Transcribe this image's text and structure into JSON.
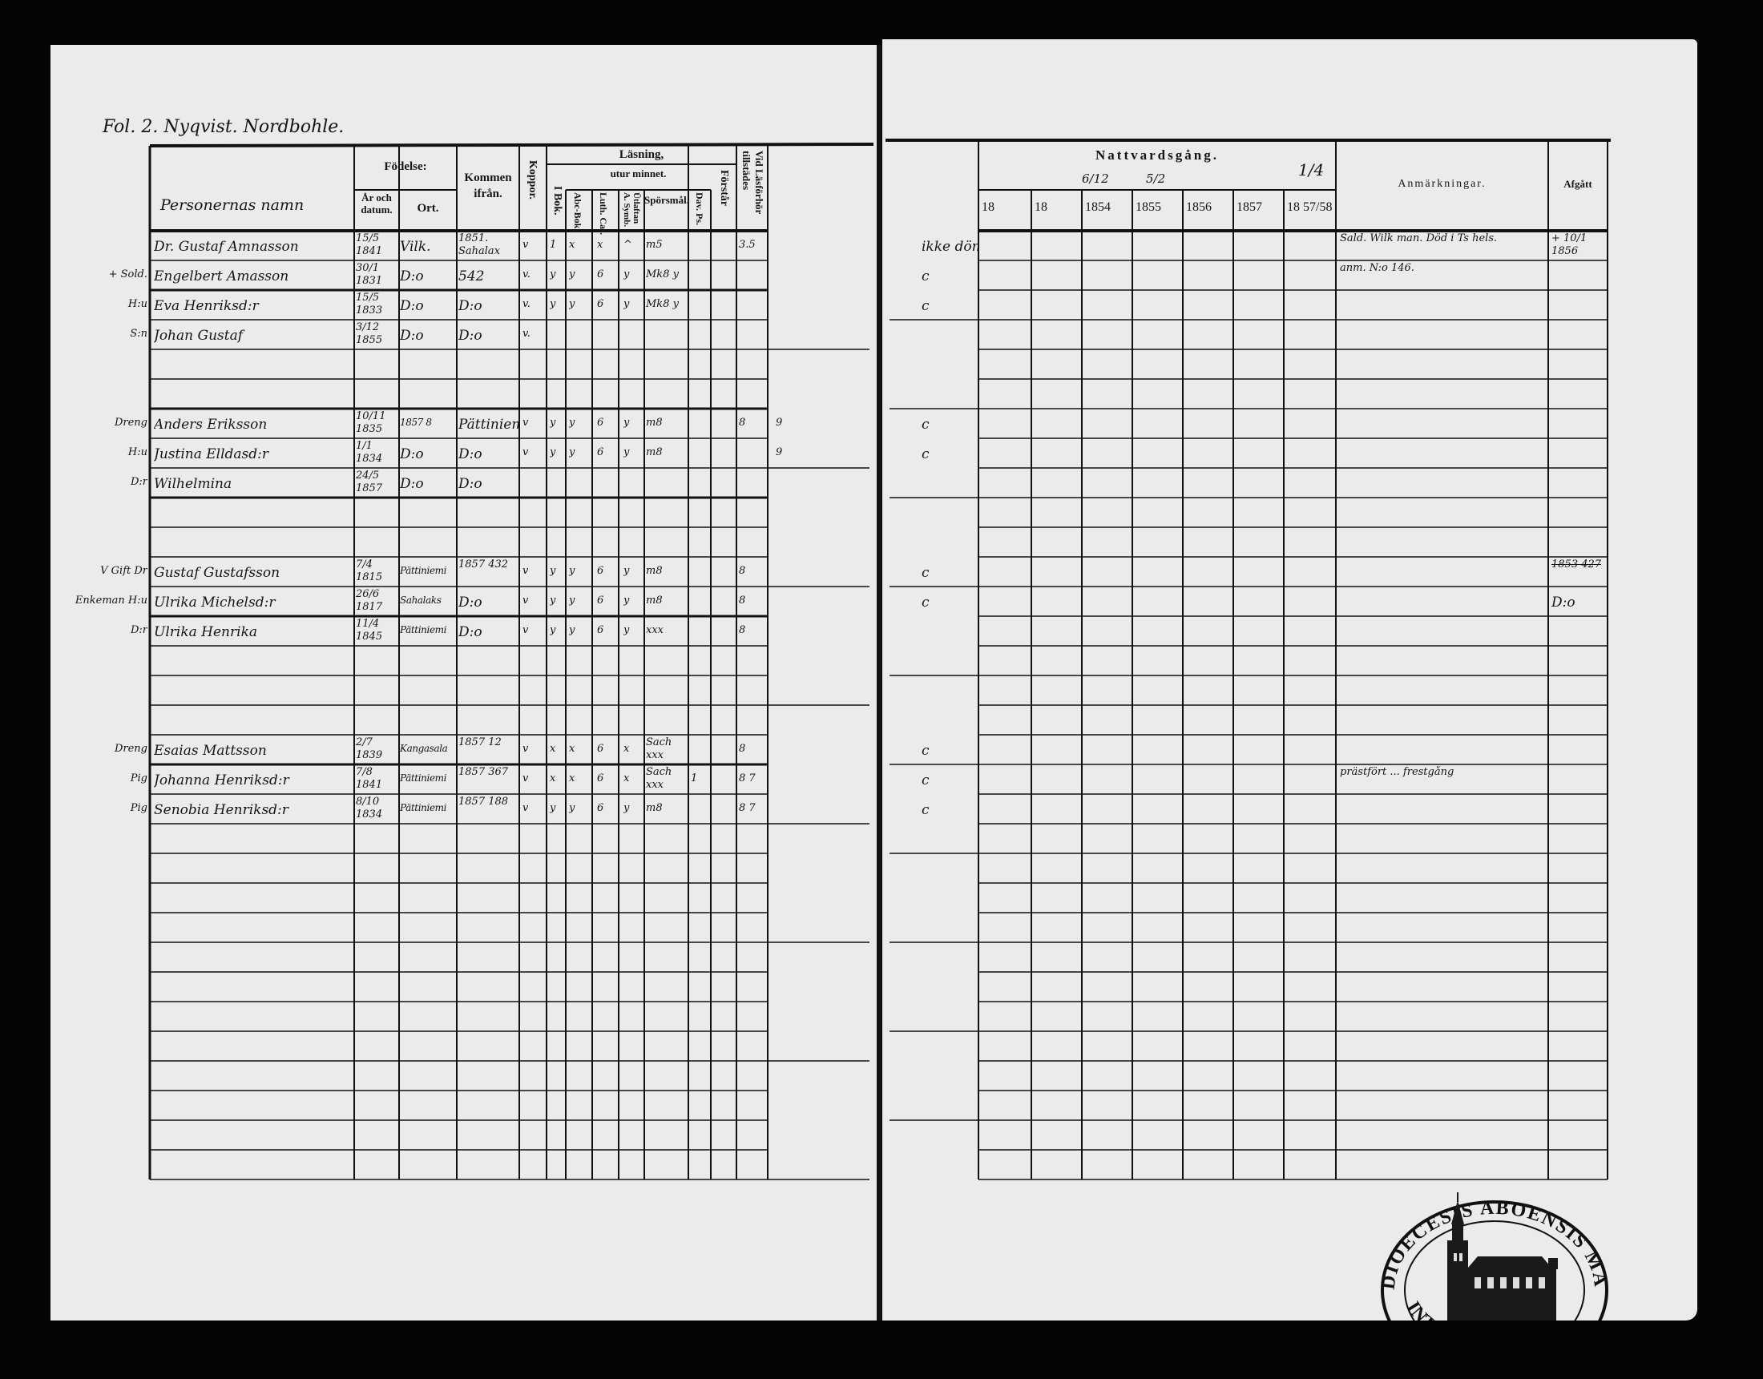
{
  "folio_title": "Fol. 2. Nyqvist. Nordbohle.",
  "left_header": {
    "name_col": "Personernas namn",
    "fodelse": "Födelse:",
    "ar_datum": "År och datum.",
    "ort": "Ort.",
    "kommen": "Kommen ifrån.",
    "koppor": "Koppor.",
    "lasning": "Läsning,",
    "i_bok": "I Bok.",
    "utur_minnet": "utur minnet.",
    "abc_bok": "Abc-Bok.",
    "luth_cat": "Luth. Cat.",
    "symb": "Ütlaftan A. Symb.",
    "sporsmal": "Spörsmål.",
    "dav_ps": "Dav. Ps.",
    "forstar": "Förstår",
    "vid_lasforhor": "Vid Läsförhör tillstädes"
  },
  "right_header": {
    "nattvardsgang": "Nattvardsgång.",
    "date_marks": [
      "6/12",
      "5/2",
      "1/4"
    ],
    "years": [
      "18",
      "18",
      "1854",
      "1855",
      "1856",
      "1857",
      "18 57/58"
    ],
    "anmarkningar": "Anmärkningar.",
    "afgatt": "Afgått"
  },
  "rows": [
    {
      "margin": "",
      "name": "Dr. Gustaf Amnasson",
      "date": "15/5 1841",
      "ort": "Vilk.",
      "kommen": "1851. Sahalax",
      "koppor": "v",
      "ibok": "1",
      "abc": "x",
      "luth": "x",
      "symb": "^",
      "spors": "m5",
      "dav": "",
      "forstar": "",
      "vid": "3.5",
      "extra": "",
      "r_margin": "ikke döm",
      "remark": "Sald. Wilk man. Död i Ts hels.",
      "afgatt": "+ 10/1 1856"
    },
    {
      "margin": "+ Sold.",
      "name": "Engelbert Amasson",
      "date": "30/1 1831",
      "ort": "D:o",
      "kommen": "542",
      "koppor": "v.",
      "ibok": "y",
      "abc": "y",
      "luth": "6",
      "symb": "y",
      "spors": "Mk8 y",
      "dav": "",
      "forstar": "",
      "vid": "",
      "extra": "",
      "r_margin": "c",
      "remark": "anm. N:o 146.",
      "afgatt": ""
    },
    {
      "margin": "H:u",
      "name": "Eva Henriksd:r",
      "date": "15/5 1833",
      "ort": "D:o",
      "kommen": "D:o",
      "koppor": "v.",
      "ibok": "y",
      "abc": "y",
      "luth": "6",
      "symb": "y",
      "spors": "Mk8 y",
      "dav": "",
      "forstar": "",
      "vid": "",
      "extra": "",
      "r_margin": "c",
      "remark": "",
      "afgatt": ""
    },
    {
      "margin": "S:n",
      "name": "Johan Gustaf",
      "date": "3/12 1855",
      "ort": "D:o",
      "kommen": "D:o",
      "koppor": "v.",
      "ibok": "",
      "abc": "",
      "luth": "",
      "symb": "",
      "spors": "",
      "dav": "",
      "forstar": "",
      "vid": "",
      "extra": "",
      "r_margin": "",
      "remark": "",
      "afgatt": ""
    },
    {},
    {},
    {
      "margin": "Dreng",
      "name": "Anders Eriksson",
      "date": "10/11 1835",
      "ort": "1857 8",
      "kommen": "Pättiniemi",
      "koppor": "v",
      "ibok": "y",
      "abc": "y",
      "luth": "6",
      "symb": "y",
      "spors": "m8",
      "dav": "",
      "forstar": "",
      "vid": "8",
      "extra": "9",
      "r_margin": "c",
      "remark": "",
      "afgatt": ""
    },
    {
      "margin": "H:u",
      "name": "Justina Elldasd:r",
      "date": "1/1 1834",
      "ort": "D:o",
      "kommen": "D:o",
      "koppor": "v",
      "ibok": "y",
      "abc": "y",
      "luth": "6",
      "symb": "y",
      "spors": "m8",
      "dav": "",
      "forstar": "",
      "vid": "",
      "extra": "9",
      "r_margin": "c",
      "remark": "",
      "afgatt": ""
    },
    {
      "margin": "D:r",
      "name": "Wilhelmina",
      "date": "24/5 1857",
      "ort": "D:o",
      "kommen": "D:o",
      "koppor": "",
      "ibok": "",
      "abc": "",
      "luth": "",
      "symb": "",
      "spors": "",
      "dav": "",
      "forstar": "",
      "vid": "",
      "extra": "",
      "r_margin": "",
      "remark": "",
      "afgatt": ""
    },
    {},
    {},
    {
      "margin": "V Gift Dr",
      "name": "Gustaf Gustafsson",
      "date": "7/4 1815",
      "ort": "Pättiniemi",
      "kommen": "1857 432",
      "koppor": "v",
      "ibok": "y",
      "abc": "y",
      "luth": "6",
      "symb": "y",
      "spors": "m8",
      "dav": "",
      "forstar": "",
      "vid": "8",
      "extra": "",
      "r_margin": "c",
      "remark": "",
      "afgatt": "1853 427"
    },
    {
      "margin": "Enkeman H:u",
      "name": "Ulrika Michelsd:r",
      "date": "26/6 1817",
      "ort": "Sahalaks",
      "kommen": "D:o",
      "koppor": "v",
      "ibok": "y",
      "abc": "y",
      "luth": "6",
      "symb": "y",
      "spors": "m8",
      "dav": "",
      "forstar": "",
      "vid": "8",
      "extra": "",
      "r_margin": "c",
      "remark": "",
      "afgatt": "D:o"
    },
    {
      "margin": "D:r",
      "name": "Ulrika Henrika",
      "date": "11/4 1845",
      "ort": "Pättiniemi",
      "kommen": "D:o",
      "koppor": "v",
      "ibok": "y",
      "abc": "y",
      "luth": "6",
      "symb": "y",
      "spors": "xxx",
      "dav": "",
      "forstar": "",
      "vid": "8",
      "extra": "",
      "r_margin": "",
      "remark": "",
      "afgatt": ""
    },
    {},
    {},
    {},
    {
      "margin": "Dreng",
      "name": "Esaias Mattsson",
      "date": "2/7 1839",
      "ort": "Kangasala",
      "kommen": "1857 12",
      "koppor": "v",
      "ibok": "x",
      "abc": "x",
      "luth": "6",
      "symb": "x",
      "spors": "Sach xxx",
      "dav": "",
      "forstar": "",
      "vid": "8",
      "extra": "",
      "r_margin": "c",
      "remark": "",
      "afgatt": ""
    },
    {
      "margin": "Pig",
      "name": "Johanna Henriksd:r",
      "date": "7/8 1841",
      "ort": "Pättiniemi",
      "kommen": "1857 367",
      "koppor": "v",
      "ibok": "x",
      "abc": "x",
      "luth": "6",
      "symb": "x",
      "spors": "Sach xxx",
      "dav": "1",
      "forstar": "",
      "vid": "8 7",
      "extra": "",
      "r_margin": "c",
      "remark": "prästfört ... frestgång",
      "afgatt": ""
    },
    {
      "margin": "Pig",
      "name": "Senobia Henriksd:r",
      "date": "8/10 1834",
      "ort": "Pättiniemi",
      "kommen": "1857 188",
      "koppor": "v",
      "ibok": "y",
      "abc": "y",
      "luth": "6",
      "symb": "y",
      "spors": "m8",
      "dav": "",
      "forstar": "",
      "vid": "8 7",
      "extra": "",
      "r_margin": "c",
      "remark": "",
      "afgatt": ""
    }
  ],
  "seal": {
    "text_top": "DIOECESIS ABOENSIS MAG",
    "text_bottom": "INT."
  }
}
